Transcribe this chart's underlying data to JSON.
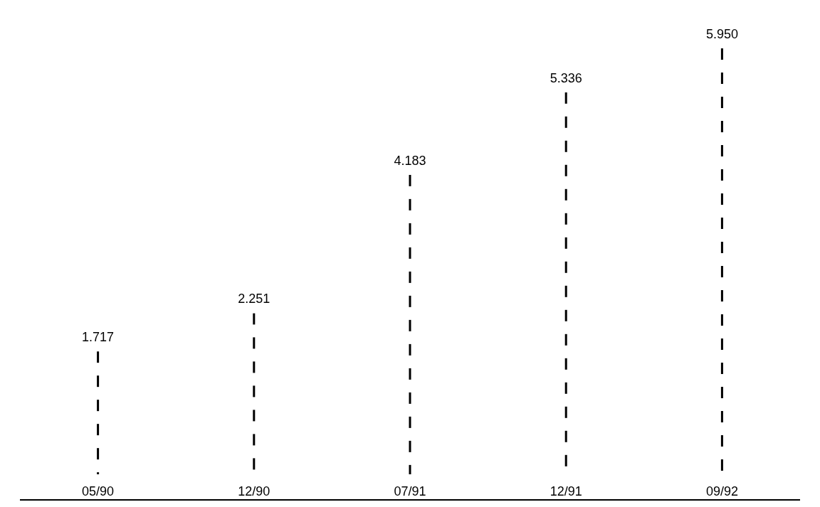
{
  "chart_data": {
    "type": "bar",
    "categories": [
      "05/90",
      "12/90",
      "07/91",
      "12/91",
      "09/92"
    ],
    "values": [
      1.717,
      2.251,
      4.183,
      5.336,
      5.95
    ],
    "value_labels": [
      "1.717",
      "2.251",
      "4.183",
      "5.336",
      "5.950"
    ],
    "color": "#000000",
    "tick_labels": "x"
  }
}
